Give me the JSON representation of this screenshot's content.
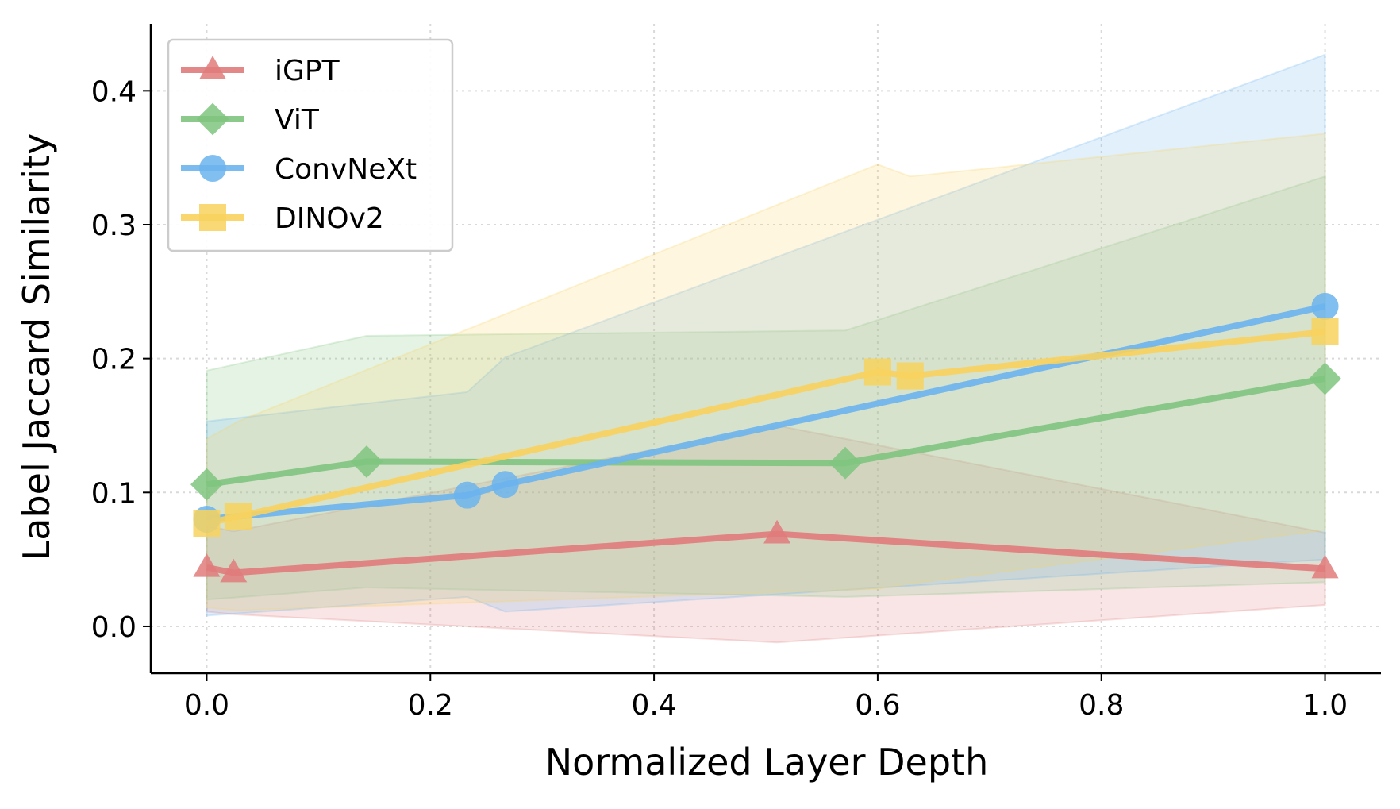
{
  "chart_data": {
    "type": "line",
    "title": "",
    "xlabel": "Normalized Layer Depth",
    "ylabel": "Label Jaccard Similarity",
    "xlim": [
      -0.05,
      1.05
    ],
    "ylim": [
      -0.035,
      0.45
    ],
    "xticks": [
      0.0,
      0.2,
      0.4,
      0.6,
      0.8,
      1.0
    ],
    "xtick_labels": [
      "0.0",
      "0.2",
      "0.4",
      "0.6",
      "0.8",
      "1.0"
    ],
    "yticks": [
      0.0,
      0.1,
      0.2,
      0.3,
      0.4
    ],
    "ytick_labels": [
      "0.0",
      "0.1",
      "0.2",
      "0.3",
      "0.4"
    ],
    "grid": true,
    "legend_position": "top-left",
    "series": [
      {
        "name": "iGPT",
        "color": "#e07b7b",
        "marker": "triangle",
        "x": [
          0.0,
          0.024,
          0.51,
          1.0
        ],
        "y": [
          0.044,
          0.04,
          0.069,
          0.043
        ],
        "lower": [
          0.011,
          0.009,
          -0.012,
          0.016
        ],
        "upper": [
          0.075,
          0.071,
          0.15,
          0.07
        ]
      },
      {
        "name": "ViT",
        "color": "#7fc47f",
        "marker": "diamond",
        "x": [
          0.0,
          0.143,
          0.571,
          1.0
        ],
        "y": [
          0.106,
          0.123,
          0.122,
          0.185
        ],
        "lower": [
          0.02,
          0.029,
          0.022,
          0.033
        ],
        "upper": [
          0.191,
          0.217,
          0.221,
          0.336
        ]
      },
      {
        "name": "ConvNeXt",
        "color": "#6cb4ee",
        "marker": "circle",
        "x": [
          0.0,
          0.233,
          0.267,
          1.0
        ],
        "y": [
          0.08,
          0.098,
          0.106,
          0.239
        ],
        "lower": [
          0.008,
          0.022,
          0.011,
          0.05
        ],
        "upper": [
          0.153,
          0.175,
          0.201,
          0.427
        ]
      },
      {
        "name": "DINOv2",
        "color": "#f8d25e",
        "marker": "square",
        "x": [
          0.0,
          0.028,
          0.6,
          0.629,
          1.0
        ],
        "y": [
          0.077,
          0.082,
          0.19,
          0.187,
          0.22
        ],
        "lower": [
          0.014,
          0.012,
          0.028,
          0.032,
          0.072
        ],
        "upper": [
          0.14,
          0.153,
          0.345,
          0.336,
          0.368
        ]
      }
    ]
  }
}
